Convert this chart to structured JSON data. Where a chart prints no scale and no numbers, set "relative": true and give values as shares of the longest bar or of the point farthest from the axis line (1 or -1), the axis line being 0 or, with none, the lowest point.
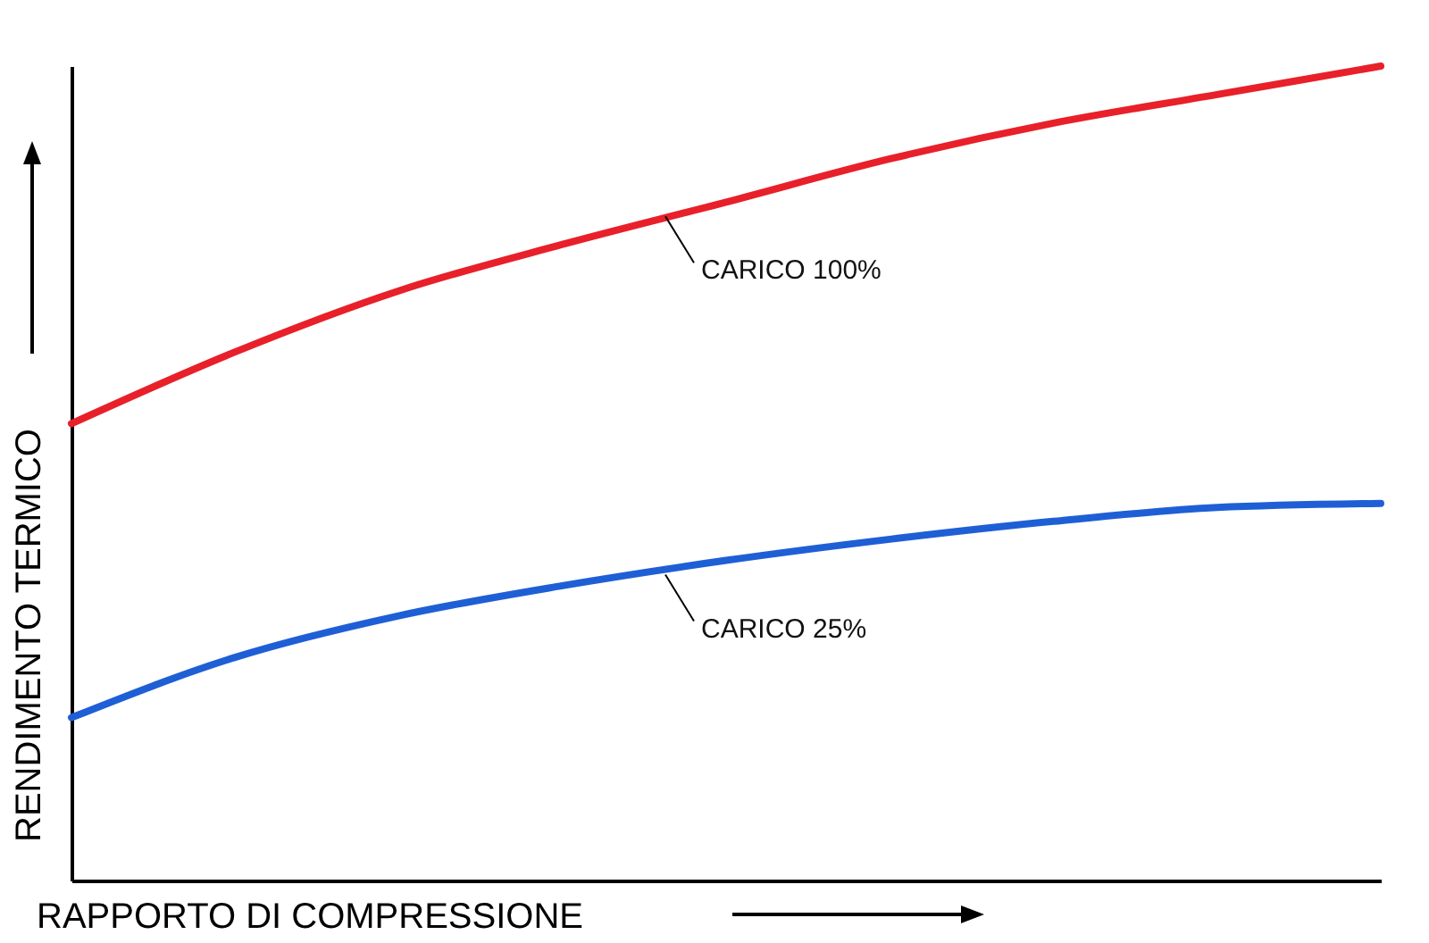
{
  "chart_data": {
    "type": "line",
    "relative": true,
    "xlabel": "RAPPORTO DI COMPRESSIONE",
    "ylabel": "RENDIMENTO TERMICO",
    "categories": [
      null,
      null,
      null,
      null,
      null,
      null,
      null,
      null,
      null
    ],
    "series": [
      {
        "name": "CARICO 100%",
        "color": "#e8202a",
        "values": [
          0.561,
          0.649,
          0.724,
          0.781,
          0.833,
          0.886,
          0.93,
          0.965,
          1
        ]
      },
      {
        "name": "CARICO 25%",
        "color": "#1f5fd6",
        "values": [
          0.2,
          0.274,
          0.325,
          0.362,
          0.393,
          0.419,
          0.441,
          0.458,
          0.463
        ]
      }
    ]
  }
}
